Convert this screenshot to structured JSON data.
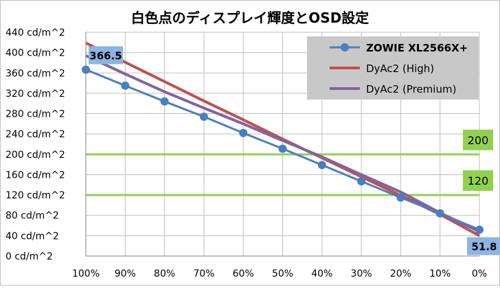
{
  "chart_data": {
    "type": "line",
    "title": "白色点のディスプレイ輝度とOSD設定",
    "x": [
      "100%",
      "90%",
      "80%",
      "70%",
      "60%",
      "50%",
      "40%",
      "30%",
      "20%",
      "10%",
      "0%"
    ],
    "y_ticks": [
      "0 cd/m^2",
      "40 cd/m^2",
      "80 cd/m^2",
      "120 cd/m^2",
      "160 cd/m^2",
      "200 cd/m^2",
      "240 cd/m^2",
      "280 cd/m^2",
      "320 cd/m^2",
      "360 cd/m^2",
      "400 cd/m^2",
      "440 cd/m^2"
    ],
    "ylim": [
      0,
      440
    ],
    "ystep": 40,
    "xlabel": "",
    "ylabel": "",
    "grid": true,
    "legend_position": "top-right",
    "series": [
      {
        "name": "ZOWIE XL2566X+",
        "color": "#4a7ebf",
        "markers": true,
        "values": [
          366.5,
          335,
          304,
          274,
          242,
          211,
          179,
          147,
          115,
          84,
          51.8
        ]
      },
      {
        "name": "DyAc2 (High)",
        "color": "#c0504d",
        "markers": false,
        "values": [
          419,
          381,
          343,
          305,
          268,
          230,
          193,
          156,
          119,
          82,
          40
        ]
      },
      {
        "name": "DyAc2 (Premium)",
        "color": "#8064a2",
        "markers": false,
        "values": [
          394,
          358,
          323,
          291,
          260,
          227,
          195,
          160,
          126,
          85,
          48
        ]
      }
    ],
    "reference_lines": [
      {
        "value": 200,
        "label": "200",
        "color": "#92d050"
      },
      {
        "value": 120,
        "label": "120",
        "color": "#92d050"
      }
    ],
    "data_labels": [
      {
        "series": "ZOWIE XL2566X+",
        "index": 0,
        "text": "366.5"
      },
      {
        "series": "ZOWIE XL2566X+",
        "index": 10,
        "text": "51.8"
      }
    ]
  }
}
